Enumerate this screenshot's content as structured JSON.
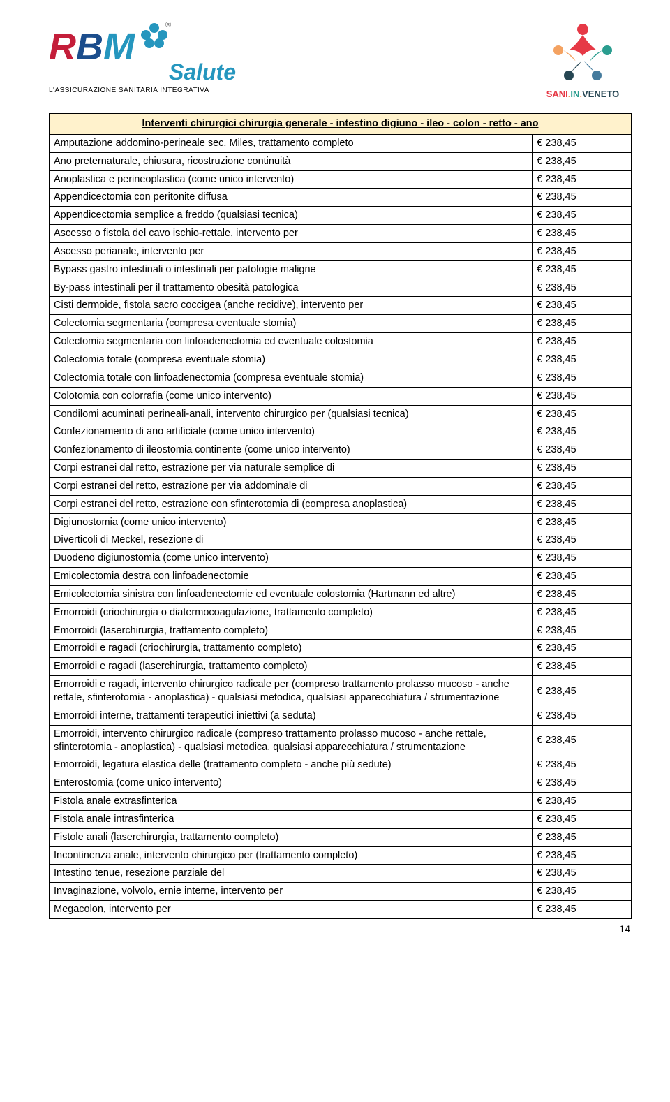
{
  "logoLeft": {
    "brandR": "R",
    "brandB": "B",
    "brandM": "M",
    "sub": "Salute",
    "tag": "L'ASSICURAZIONE SANITARIA INTEGRATIVA",
    "reg": "®"
  },
  "logoRight": {
    "line": "SANI.IN.VENETO"
  },
  "table": {
    "header": "Interventi chirurgici chirurgia generale - intestino digiuno - ileo - colon - retto - ano",
    "rows": [
      {
        "desc": "Amputazione addomino-perineale sec. Miles, trattamento completo",
        "price": "€ 238,45"
      },
      {
        "desc": "Ano preternaturale, chiusura, ricostruzione continuità",
        "price": "€ 238,45"
      },
      {
        "desc": "Anoplastica e perineoplastica (come unico intervento)",
        "price": "€ 238,45"
      },
      {
        "desc": "Appendicectomia con peritonite diffusa",
        "price": "€ 238,45"
      },
      {
        "desc": "Appendicectomia semplice a freddo (qualsiasi tecnica)",
        "price": "€ 238,45"
      },
      {
        "desc": "Ascesso o fistola del cavo ischio-rettale, intervento per",
        "price": "€ 238,45"
      },
      {
        "desc": "Ascesso perianale, intervento per",
        "price": "€ 238,45"
      },
      {
        "desc": "Bypass gastro intestinali o intestinali per patologie maligne",
        "price": "€ 238,45"
      },
      {
        "desc": "By-pass intestinali per il trattamento obesità patologica",
        "price": "€ 238,45"
      },
      {
        "desc": "Cisti dermoide, fistola sacro coccigea (anche recidive), intervento per",
        "price": "€ 238,45"
      },
      {
        "desc": "Colectomia segmentaria (compresa eventuale stomia)",
        "price": "€ 238,45"
      },
      {
        "desc": "Colectomia segmentaria con linfoadenectomia ed eventuale colostomia",
        "price": "€ 238,45"
      },
      {
        "desc": "Colectomia totale (compresa eventuale stomia)",
        "price": "€ 238,45"
      },
      {
        "desc": "Colectomia totale con linfoadenectomia (compresa eventuale stomia)",
        "price": "€ 238,45"
      },
      {
        "desc": "Colotomia con colorrafia (come unico intervento)",
        "price": "€ 238,45"
      },
      {
        "desc": "Condilomi acuminati perineali-anali, intervento chirurgico per (qualsiasi tecnica)",
        "price": "€ 238,45"
      },
      {
        "desc": "Confezionamento di ano artificiale (come unico intervento)",
        "price": "€ 238,45"
      },
      {
        "desc": "Confezionamento di ileostomia continente (come unico intervento)",
        "price": "€ 238,45"
      },
      {
        "desc": "Corpi estranei dal retto, estrazione per via naturale semplice di",
        "price": "€ 238,45"
      },
      {
        "desc": "Corpi estranei del retto, estrazione per via addominale di",
        "price": "€ 238,45"
      },
      {
        "desc": "Corpi estranei del retto, estrazione con sfinterotomia di (compresa anoplastica)",
        "price": "€ 238,45"
      },
      {
        "desc": "Digiunostomia (come unico intervento)",
        "price": "€ 238,45"
      },
      {
        "desc": "Diverticoli di Meckel, resezione di",
        "price": "€ 238,45"
      },
      {
        "desc": "Duodeno digiunostomia (come unico intervento)",
        "price": "€ 238,45"
      },
      {
        "desc": "Emicolectomia destra con linfoadenectomie",
        "price": "€ 238,45"
      },
      {
        "desc": "Emicolectomia sinistra con linfoadenectomie ed eventuale colostomia (Hartmann ed altre)",
        "price": "€ 238,45"
      },
      {
        "desc": "Emorroidi (criochirurgia o diatermocoagulazione, trattamento completo)",
        "price": "€ 238,45"
      },
      {
        "desc": "Emorroidi (laserchirurgia, trattamento completo)",
        "price": "€ 238,45"
      },
      {
        "desc": "Emorroidi e ragadi (criochirurgia, trattamento completo)",
        "price": "€ 238,45"
      },
      {
        "desc": "Emorroidi e ragadi (laserchirurgia, trattamento completo)",
        "price": "€ 238,45"
      },
      {
        "desc": "Emorroidi e ragadi, intervento chirurgico radicale per (compreso trattamento prolasso mucoso - anche rettale, sfinterotomia - anoplastica) - qualsiasi metodica, qualsiasi apparecchiatura / strumentazione",
        "price": "€ 238,45"
      },
      {
        "desc": "Emorroidi interne, trattamenti terapeutici iniettivi (a seduta)",
        "price": "€ 238,45"
      },
      {
        "desc": "Emorroidi, intervento chirurgico radicale (compreso trattamento prolasso mucoso - anche rettale, sfinterotomia - anoplastica) - qualsiasi metodica, qualsiasi apparecchiatura / strumentazione",
        "price": "€ 238,45"
      },
      {
        "desc": "Emorroidi, legatura elastica delle (trattamento completo - anche più sedute)",
        "price": "€ 238,45"
      },
      {
        "desc": "Enterostomia (come unico intervento)",
        "price": "€ 238,45"
      },
      {
        "desc": "Fistola anale extrasfinterica",
        "price": "€ 238,45"
      },
      {
        "desc": "Fistola anale intrasfinterica",
        "price": "€ 238,45"
      },
      {
        "desc": "Fistole anali (laserchirurgia, trattamento completo)",
        "price": "€ 238,45"
      },
      {
        "desc": "Incontinenza anale, intervento chirurgico per (trattamento completo)",
        "price": "€ 238,45"
      },
      {
        "desc": "Intestino tenue, resezione parziale del",
        "price": "€ 238,45"
      },
      {
        "desc": "Invaginazione, volvolo, ernie interne, intervento per",
        "price": "€ 238,45"
      },
      {
        "desc": "Megacolon, intervento per",
        "price": "€ 238,45"
      }
    ]
  },
  "pageNumber": "14"
}
